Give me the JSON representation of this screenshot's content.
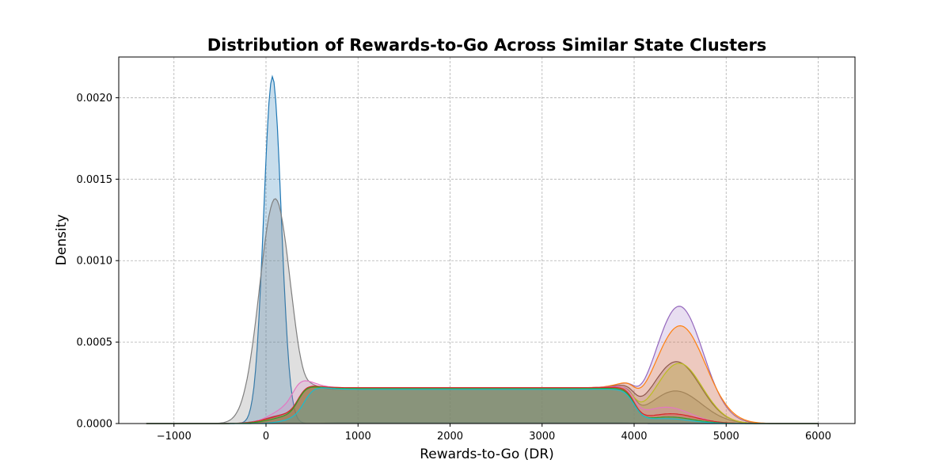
{
  "chart_data": {
    "type": "area",
    "title": "Distribution of Rewards-to-Go Across Similar State Clusters",
    "xlabel": "Rewards-to-Go (DR)",
    "ylabel": "Density",
    "xlim": [
      -1600,
      6400
    ],
    "ylim": [
      0,
      0.00225
    ],
    "xticks": [
      -1000,
      0,
      1000,
      2000,
      3000,
      4000,
      5000,
      6000
    ],
    "xtick_labels": [
      "−1000",
      "0",
      "1000",
      "2000",
      "3000",
      "4000",
      "5000",
      "6000"
    ],
    "yticks": [
      0,
      0.0005,
      0.001,
      0.0015,
      0.002
    ],
    "ytick_labels": [
      "0.0000",
      "0.0005",
      "0.0010",
      "0.0015",
      "0.0020"
    ],
    "grid": true,
    "legend": false,
    "series": [
      {
        "color": "#1f77b4",
        "alpha": 0.25,
        "peaks": [
          {
            "mu": 70,
            "sigma": 95,
            "amp": 0.00213
          }
        ],
        "plateau": {
          "start": 650,
          "end": 4000,
          "height": 5e-06,
          "ramp": 200
        }
      },
      {
        "color": "#7f7f7f",
        "alpha": 0.25,
        "peaks": [
          {
            "mu": 100,
            "sigma": 170,
            "amp": 0.00138
          },
          {
            "mu": 4450,
            "sigma": 280,
            "amp": 0.0002
          }
        ],
        "plateau": {
          "start": 450,
          "end": 4000,
          "height": 0.00021,
          "ramp": 180
        }
      },
      {
        "color": "#9467bd",
        "alpha": 0.22,
        "peaks": [
          {
            "mu": 4490,
            "sigma": 260,
            "amp": 0.00072
          },
          {
            "mu": 200,
            "sigma": 200,
            "amp": 4e-05
          }
        ],
        "plateau": {
          "start": 350,
          "end": 4000,
          "height": 0.00022,
          "ramp": 200
        }
      },
      {
        "color": "#ff7f0e",
        "alpha": 0.22,
        "peaks": [
          {
            "mu": 4500,
            "sigma": 275,
            "amp": 0.0006
          },
          {
            "mu": 250,
            "sigma": 200,
            "amp": 4e-05
          }
        ],
        "plateau": {
          "start": 350,
          "end": 4000,
          "height": 0.00022,
          "ramp": 200
        }
      },
      {
        "color": "#8c564b",
        "alpha": 0.22,
        "peaks": [
          {
            "mu": 4460,
            "sigma": 260,
            "amp": 0.00038
          },
          {
            "mu": 200,
            "sigma": 200,
            "amp": 5e-05
          }
        ],
        "plateau": {
          "start": 350,
          "end": 4000,
          "height": 0.00022,
          "ramp": 200
        }
      },
      {
        "color": "#bcbd22",
        "alpha": 0.22,
        "peaks": [
          {
            "mu": 4490,
            "sigma": 250,
            "amp": 0.00037
          },
          {
            "mu": 230,
            "sigma": 200,
            "amp": 4e-05
          }
        ],
        "plateau": {
          "start": 350,
          "end": 4000,
          "height": 0.000215,
          "ramp": 200
        }
      },
      {
        "color": "#e377c2",
        "alpha": 0.22,
        "peaks": [
          {
            "mu": 250,
            "sigma": 190,
            "amp": 9e-05
          },
          {
            "mu": 4350,
            "sigma": 260,
            "amp": 0.0001
          }
        ],
        "plateau": {
          "start": 300,
          "end": 4000,
          "height": 0.00022,
          "ramp": 200
        }
      },
      {
        "color": "#d62728",
        "alpha": 0.22,
        "peaks": [
          {
            "mu": 4400,
            "sigma": 270,
            "amp": 6e-05
          },
          {
            "mu": 220,
            "sigma": 200,
            "amp": 5e-05
          }
        ],
        "plateau": {
          "start": 350,
          "end": 4000,
          "height": 0.00022,
          "ramp": 200
        }
      },
      {
        "color": "#2ca02c",
        "alpha": 0.22,
        "peaks": [
          {
            "mu": 4380,
            "sigma": 260,
            "amp": 4e-05
          },
          {
            "mu": 250,
            "sigma": 200,
            "amp": 4e-05
          }
        ],
        "plateau": {
          "start": 350,
          "end": 4000,
          "height": 0.000215,
          "ramp": 200
        }
      },
      {
        "color": "#17becf",
        "alpha": 0.22,
        "peaks": [
          {
            "mu": 4350,
            "sigma": 260,
            "amp": 3e-05
          },
          {
            "mu": 400,
            "sigma": 180,
            "amp": 3e-05
          }
        ],
        "plateau": {
          "start": 420,
          "end": 4000,
          "height": 0.00021,
          "ramp": 220
        }
      }
    ]
  }
}
